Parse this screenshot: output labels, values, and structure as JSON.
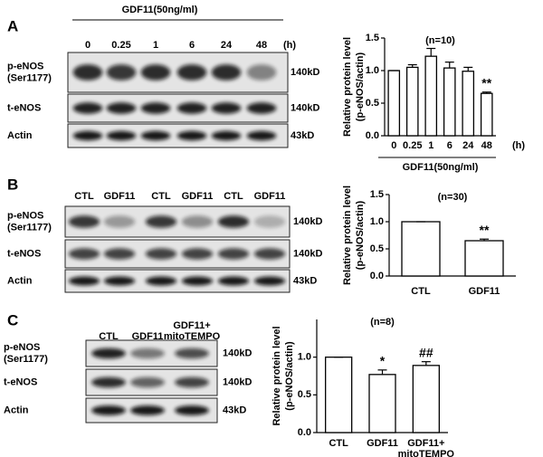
{
  "blots": [
    {
      "letter": "A",
      "treatment": "GDF11(50ng/ml)",
      "lanes": [
        "0",
        "0.25",
        "1",
        "6",
        "24",
        "48"
      ],
      "lane_unit": "(h)",
      "rows": [
        {
          "label": [
            "p-eNOS",
            "(Ser1177)"
          ],
          "size": "140kD"
        },
        {
          "label": [
            "t-eNOS"
          ],
          "size": "140kD"
        },
        {
          "label": [
            "Actin"
          ],
          "size": "43kD"
        }
      ]
    },
    {
      "letter": "B",
      "lanes": [
        "CTL",
        "GDF11",
        "CTL",
        "GDF11",
        "CTL",
        "GDF11"
      ],
      "rows": [
        {
          "label": [
            "p-eNOS",
            "(Ser1177)"
          ],
          "size": "140kD"
        },
        {
          "label": [
            "t-eNOS"
          ],
          "size": "140kD"
        },
        {
          "label": [
            "Actin"
          ],
          "size": "43kD"
        }
      ]
    },
    {
      "letter": "C",
      "lanes": [
        [
          "CTL"
        ],
        [
          "GDF11"
        ],
        [
          "GDF11+",
          "mitoTEMPO"
        ]
      ],
      "rows": [
        {
          "label": [
            "p-eNOS",
            "(Ser1177)"
          ],
          "size": "140kD"
        },
        {
          "label": [
            "t-eNOS"
          ],
          "size": "140kD"
        },
        {
          "label": [
            "Actin"
          ],
          "size": "43kD"
        }
      ]
    }
  ],
  "chart_data": [
    {
      "type": "bar",
      "title": "(n=10)",
      "ylabel": [
        "Relative protein level",
        "(p-eNOS/actin)"
      ],
      "xlabel": "GDF11(50ng/ml)",
      "x_unit": "(h)",
      "categories": [
        [
          "0"
        ],
        [
          "0.25"
        ],
        [
          "1"
        ],
        [
          "6"
        ],
        [
          "24"
        ],
        [
          "48"
        ]
      ],
      "values": [
        1.0,
        1.05,
        1.22,
        1.04,
        0.99,
        0.65
      ],
      "errors": [
        0,
        0.04,
        0.12,
        0.09,
        0.06,
        0.02
      ],
      "significance": [
        null,
        null,
        null,
        null,
        null,
        "**"
      ],
      "color": "#ffffff",
      "ylim": [
        0,
        1.5
      ],
      "yticks": [
        {
          "value": 0,
          "label": "0.0"
        },
        {
          "value": 0.5,
          "label": "0.5"
        },
        {
          "value": 1,
          "label": "1.0"
        },
        {
          "value": 1.5,
          "label": "1.5"
        }
      ]
    },
    {
      "type": "bar",
      "title": "(n=30)",
      "ylabel": [
        "Relative protein level",
        "(p-eNOS/actin)"
      ],
      "categories": [
        [
          "CTL"
        ],
        [
          "GDF11"
        ]
      ],
      "values": [
        1.0,
        0.65
      ],
      "errors": [
        0,
        0.03
      ],
      "significance": [
        null,
        "**"
      ],
      "color": "#ffffff",
      "ylim": [
        0,
        1.5
      ],
      "yticks": [
        {
          "value": 0,
          "label": "0.0"
        },
        {
          "value": 0.5,
          "label": "0.5"
        },
        {
          "value": 1,
          "label": "1.0"
        },
        {
          "value": 1.5,
          "label": "1.5"
        }
      ]
    },
    {
      "type": "bar",
      "title": "(n=8)",
      "ylabel": [
        "Relative protein level",
        "(p-eNOS/actin)"
      ],
      "categories": [
        [
          "CTL"
        ],
        [
          "GDF11"
        ],
        [
          "GDF11+",
          "mitoTEMPO"
        ]
      ],
      "values": [
        1.0,
        0.77,
        0.89
      ],
      "errors": [
        0,
        0.06,
        0.05
      ],
      "significance": [
        null,
        "*",
        "##"
      ],
      "color": "#ffffff",
      "ylim": [
        0,
        1.5
      ],
      "yticks": [
        {
          "value": 0,
          "label": "0.0"
        },
        {
          "value": 0.5,
          "label": "0.5"
        },
        {
          "value": 1,
          "label": "1.0"
        }
      ]
    }
  ]
}
